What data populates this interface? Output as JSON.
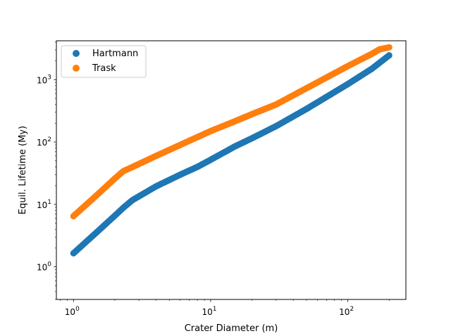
{
  "chart_data": {
    "type": "scatter",
    "xlabel": "Crater Diameter (m)",
    "ylabel": "Equil. Lifetime (My)",
    "xscale": "log",
    "yscale": "log",
    "xlim": [
      0.75,
      265
    ],
    "ylim": [
      0.3,
      4200
    ],
    "x_ticks": [
      {
        "value": 1,
        "base": "10",
        "exp": "0"
      },
      {
        "value": 10,
        "base": "10",
        "exp": "1"
      },
      {
        "value": 100,
        "base": "10",
        "exp": "2"
      }
    ],
    "y_ticks": [
      {
        "value": 1,
        "base": "10",
        "exp": "0"
      },
      {
        "value": 10,
        "base": "10",
        "exp": "1"
      },
      {
        "value": 100,
        "base": "10",
        "exp": "2"
      },
      {
        "value": 1000,
        "base": "10",
        "exp": "3"
      }
    ],
    "grid": false,
    "legend_position": "top-left",
    "series": [
      {
        "name": "Hartmann",
        "color": "#1f77b4",
        "x": [
          1.0,
          1.5,
          2.0,
          2.3,
          2.7,
          4.0,
          6.0,
          8.0,
          10.0,
          15.0,
          20.0,
          30.0,
          50.0,
          100.0,
          150.0,
          200.0
        ],
        "y": [
          1.65,
          3.7,
          6.6,
          8.8,
          11.8,
          19.5,
          30.0,
          40.0,
          52.0,
          85.0,
          115.0,
          180.0,
          340.0,
          850.0,
          1500.0,
          2450.0
        ]
      },
      {
        "name": "Trask",
        "color": "#ff7f0e",
        "x": [
          1.0,
          1.5,
          2.0,
          2.3,
          2.7,
          4.0,
          6.0,
          8.0,
          10.0,
          15.0,
          20.0,
          30.0,
          50.0,
          100.0,
          150.0,
          170.0,
          200.0
        ],
        "y": [
          6.5,
          14.5,
          26.0,
          34.0,
          40.0,
          60.0,
          90.0,
          120.0,
          150.0,
          215.0,
          280.0,
          400.0,
          730.0,
          1650.0,
          2600.0,
          3050.0,
          3300.0
        ]
      }
    ]
  }
}
